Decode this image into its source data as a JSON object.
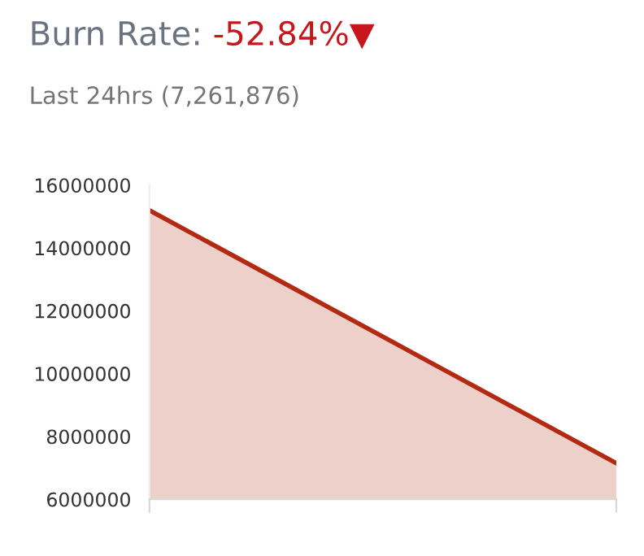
{
  "chart_data": {
    "type": "area",
    "title": "Burn Rate:",
    "subtitle": "Last 24hrs (7,261,876)",
    "annotations": [
      "-52.84%▼"
    ],
    "categories": [
      null,
      null
    ],
    "series": [
      {
        "color": "#b22a12",
        "values": [
          15200000,
          7150000
        ]
      }
    ],
    "ylim": [
      6000000,
      16000000
    ],
    "yticks": [
      6000000,
      8000000,
      10000000,
      12000000,
      14000000,
      16000000
    ],
    "grid": false,
    "legend": false
  }
}
